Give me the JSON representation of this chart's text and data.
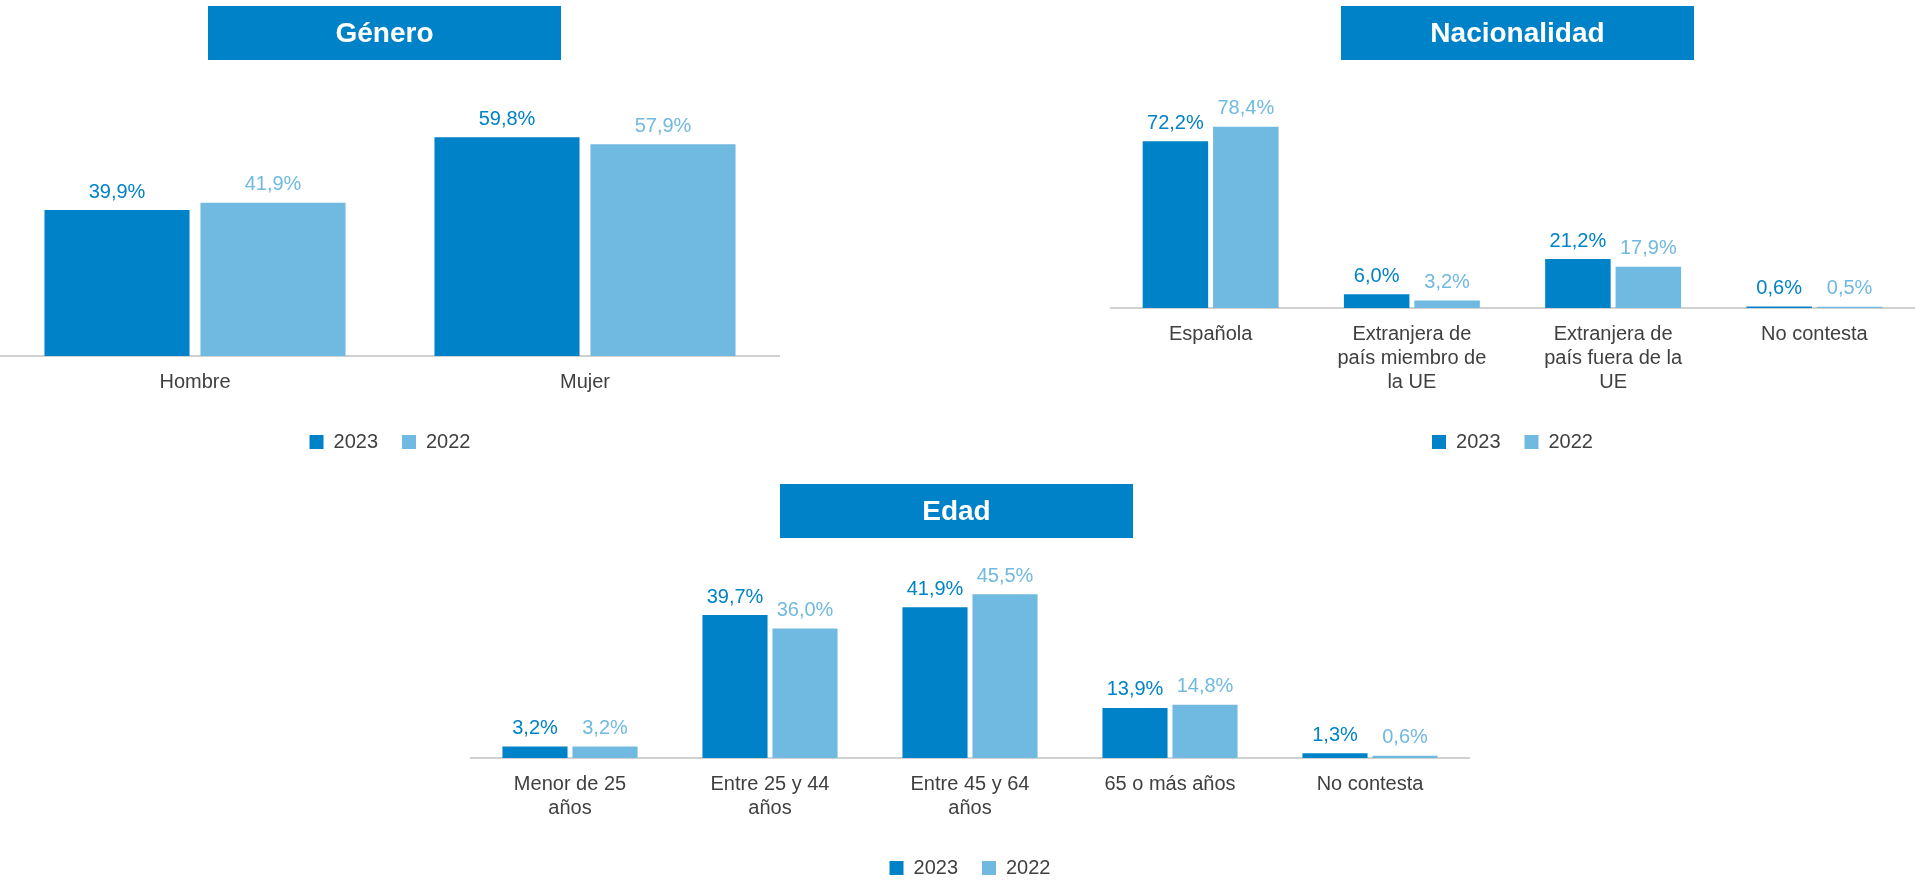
{
  "chart_data": [
    {
      "type": "bar",
      "title": "Género",
      "categories": [
        "Hombre",
        "Mujer"
      ],
      "series": [
        {
          "name": "2023",
          "color": "#0082c8",
          "values": [
            39.9,
            59.8
          ],
          "value_labels": [
            "39,9%",
            "59,8%"
          ]
        },
        {
          "name": "2022",
          "color": "#70b9e0",
          "values": [
            41.9,
            57.9
          ],
          "value_labels": [
            "41,9%",
            "57,9%"
          ]
        }
      ],
      "legend": "bottom",
      "grid": false
    },
    {
      "type": "bar",
      "title": "Nacionalidad",
      "categories": [
        "Española",
        "Extranjera de país miembro de la UE",
        "Extranjera de país fuera de la UE",
        "No contesta"
      ],
      "series": [
        {
          "name": "2023",
          "color": "#0082c8",
          "values": [
            72.2,
            6.0,
            21.2,
            0.6
          ],
          "value_labels": [
            "72,2%",
            "6,0%",
            "21,2%",
            "0,6%"
          ]
        },
        {
          "name": "2022",
          "color": "#70b9e0",
          "values": [
            78.4,
            3.2,
            17.9,
            0.5
          ],
          "value_labels": [
            "78,4%",
            "3,2%",
            "17,9%",
            "0,5%"
          ]
        }
      ],
      "legend": "bottom",
      "grid": false
    },
    {
      "type": "bar",
      "title": "Edad",
      "categories": [
        "Menor de 25 años",
        "Entre 25 y 44 años",
        "Entre 45 y 64 años",
        "65 o más años",
        "No contesta"
      ],
      "series": [
        {
          "name": "2023",
          "color": "#0082c8",
          "values": [
            3.2,
            39.7,
            41.9,
            13.9,
            1.3
          ],
          "value_labels": [
            "3,2%",
            "39,7%",
            "41,9%",
            "13,9%",
            "1,3%"
          ]
        },
        {
          "name": "2022",
          "color": "#70b9e0",
          "values": [
            3.2,
            36.0,
            45.5,
            14.8,
            0.6
          ],
          "value_labels": [
            "3,2%",
            "36,0%",
            "45,5%",
            "14,8%",
            "0,6%"
          ]
        }
      ],
      "legend": "bottom",
      "grid": false
    }
  ]
}
